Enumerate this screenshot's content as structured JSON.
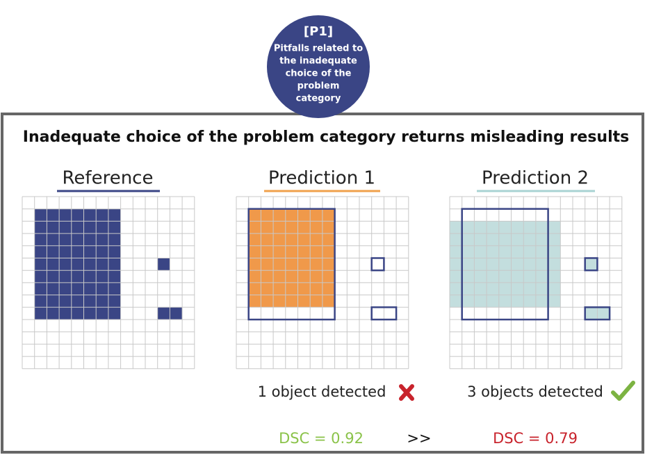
{
  "badge": {
    "code": "[P1]",
    "text": [
      "Pitfalls related to",
      "the inadequate",
      "choice of the",
      "problem",
      "category"
    ]
  },
  "title": "Inadequate choice of the problem category returns misleading results",
  "panels": [
    {
      "title": "Reference"
    },
    {
      "title": "Prediction 1"
    },
    {
      "title": "Prediction 2"
    }
  ],
  "captions": [
    "1 object detected",
    "3 objects detected"
  ],
  "scores": {
    "left": "DSC = 0.92",
    "comparison": ">>",
    "right": "DSC = 0.79"
  }
}
